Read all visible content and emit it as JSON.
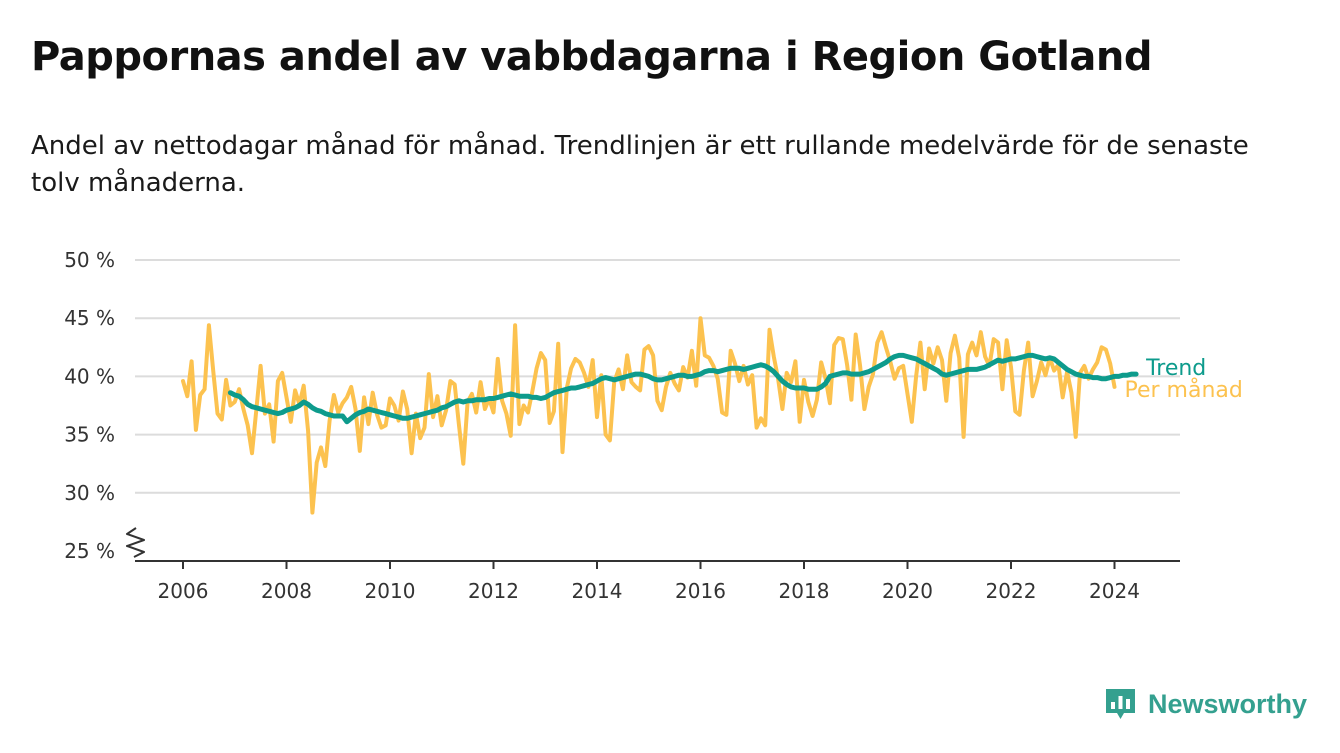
{
  "header": {
    "title": "Pappornas andel av vabbdagarna i Region Gotland",
    "subtitle": "Andel av nettodagar månad för månad. Trendlinjen är ett rullande medelvärde för de senaste tolv månaderna."
  },
  "brand": {
    "name": "Newsworthy",
    "icon": "newsworthy-logo-icon",
    "color": "#34a08f"
  },
  "colors": {
    "monthly": "#fcc24f",
    "trend": "#0d9b8c",
    "grid": "#dcdcdc",
    "axis": "#333333"
  },
  "chart_data": {
    "type": "line",
    "title": "Pappornas andel av vabbdagarna i Region Gotland",
    "xlabel": "",
    "ylabel": "",
    "ylim": [
      25,
      50
    ],
    "xlim": [
      2005.0,
      2025.2
    ],
    "y_ticks": [
      {
        "value": 50,
        "label": "50 %"
      },
      {
        "value": 45,
        "label": "45 %"
      },
      {
        "value": 40,
        "label": "40 %"
      },
      {
        "value": 35,
        "label": "35 %"
      },
      {
        "value": 30,
        "label": "30 %"
      },
      {
        "value": 25,
        "label": "25 %"
      }
    ],
    "x_ticks": [
      {
        "value": 2006,
        "label": "2006"
      },
      {
        "value": 2008,
        "label": "2008"
      },
      {
        "value": 2010,
        "label": "2010"
      },
      {
        "value": 2012,
        "label": "2012"
      },
      {
        "value": 2014,
        "label": "2014"
      },
      {
        "value": 2016,
        "label": "2016"
      },
      {
        "value": 2018,
        "label": "2018"
      },
      {
        "value": 2020,
        "label": "2020"
      },
      {
        "value": 2022,
        "label": "2022"
      },
      {
        "value": 2024,
        "label": "2024"
      }
    ],
    "axis_break": true,
    "grid": true,
    "legend": "inline-right",
    "series": [
      {
        "name": "Per månad",
        "color": "#fcc24f",
        "start": 2006.0,
        "step": 0.0833333,
        "values": [
          39.6,
          38.3,
          41.3,
          35.4,
          38.4,
          38.9,
          44.4,
          40.5,
          36.8,
          36.3,
          39.7,
          37.5,
          37.8,
          38.9,
          37.2,
          35.8,
          33.4,
          37.1,
          40.9,
          36.8,
          37.6,
          34.4,
          39.6,
          40.3,
          38.2,
          36.1,
          38.8,
          37.6,
          39.2,
          35.3,
          28.3,
          32.6,
          33.9,
          32.3,
          36.2,
          38.4,
          36.9,
          37.7,
          38.2,
          39.1,
          37.2,
          33.6,
          38.2,
          35.9,
          38.6,
          36.7,
          35.6,
          35.8,
          38.1,
          37.5,
          36.2,
          38.7,
          37.2,
          33.4,
          36.8,
          34.7,
          35.6,
          40.2,
          36.5,
          38.3,
          35.8,
          37.1,
          39.6,
          39.3,
          35.8,
          32.5,
          37.8,
          38.5,
          36.9,
          39.5,
          37.2,
          38.1,
          36.9,
          41.5,
          37.9,
          36.8,
          34.9,
          44.4,
          35.9,
          37.5,
          36.9,
          38.7,
          40.7,
          42.0,
          41.4,
          36.0,
          37.0,
          42.8,
          33.5,
          39.0,
          40.7,
          41.5,
          41.2,
          40.3,
          39.1,
          41.4,
          36.5,
          40.1,
          35.0,
          34.5,
          39.5,
          40.6,
          38.9,
          41.8,
          39.5,
          39.1,
          38.8,
          42.3,
          42.6,
          41.8,
          37.9,
          37.1,
          39.1,
          40.3,
          39.4,
          38.8,
          40.8,
          39.9,
          42.2,
          39.2,
          45.0,
          41.8,
          41.6,
          40.9,
          39.8,
          36.9,
          36.7,
          42.2,
          41.1,
          39.6,
          40.9,
          39.3,
          40.1,
          35.6,
          36.4,
          35.8,
          44.0,
          41.7,
          39.8,
          37.2,
          40.3,
          39.5,
          41.3,
          36.1,
          39.7,
          37.8,
          36.6,
          38.0,
          41.2,
          39.8,
          37.7,
          42.7,
          43.3,
          43.2,
          41.0,
          38.0,
          43.6,
          40.9,
          37.2,
          39.1,
          40.2,
          42.9,
          43.8,
          42.5,
          41.3,
          39.8,
          40.7,
          40.9,
          38.5,
          36.1,
          40.0,
          42.9,
          38.9,
          42.4,
          41.1,
          42.5,
          41.4,
          37.9,
          42.0,
          43.5,
          41.6,
          34.8,
          41.9,
          42.9,
          41.8,
          43.8,
          41.7,
          40.9,
          43.2,
          42.9,
          38.9,
          43.1,
          40.8,
          37.0,
          36.7,
          40.5,
          42.9,
          38.3,
          39.6,
          41.2,
          40.1,
          41.6,
          40.5,
          41.0,
          38.2,
          40.4,
          38.6,
          34.8,
          40.3,
          40.9,
          39.8,
          40.6,
          41.2,
          42.5,
          42.3,
          41.1,
          39.1
        ]
      },
      {
        "name": "Trend",
        "color": "#0d9b8c",
        "start": 2006.9167,
        "step": 0.0833333,
        "values": [
          38.6,
          38.4,
          38.3,
          38.0,
          37.6,
          37.4,
          37.3,
          37.2,
          37.1,
          37.0,
          36.9,
          36.8,
          36.9,
          37.1,
          37.2,
          37.3,
          37.5,
          37.8,
          37.6,
          37.3,
          37.1,
          37.0,
          36.8,
          36.7,
          36.6,
          36.6,
          36.6,
          36.1,
          36.4,
          36.7,
          36.9,
          37.0,
          37.2,
          37.1,
          37.0,
          36.9,
          36.8,
          36.7,
          36.6,
          36.5,
          36.4,
          36.4,
          36.5,
          36.6,
          36.7,
          36.8,
          36.9,
          37.0,
          37.1,
          37.3,
          37.4,
          37.6,
          37.8,
          37.9,
          37.8,
          37.9,
          37.9,
          38.0,
          38.0,
          38.0,
          38.1,
          38.1,
          38.2,
          38.3,
          38.4,
          38.5,
          38.4,
          38.3,
          38.3,
          38.3,
          38.2,
          38.2,
          38.1,
          38.2,
          38.4,
          38.6,
          38.7,
          38.8,
          38.9,
          39.0,
          39.0,
          39.1,
          39.2,
          39.3,
          39.4,
          39.6,
          39.8,
          39.9,
          39.8,
          39.7,
          39.8,
          39.9,
          40.0,
          40.1,
          40.2,
          40.2,
          40.1,
          40.0,
          39.8,
          39.7,
          39.7,
          39.8,
          39.9,
          40.0,
          40.1,
          40.1,
          40.0,
          40.0,
          40.1,
          40.2,
          40.4,
          40.5,
          40.5,
          40.4,
          40.5,
          40.6,
          40.7,
          40.7,
          40.7,
          40.6,
          40.7,
          40.8,
          40.9,
          41.0,
          40.9,
          40.7,
          40.4,
          40.0,
          39.6,
          39.3,
          39.1,
          39.0,
          39.0,
          39.0,
          38.9,
          38.9,
          38.9,
          39.1,
          39.4,
          40.0,
          40.1,
          40.2,
          40.3,
          40.3,
          40.2,
          40.2,
          40.2,
          40.3,
          40.4,
          40.6,
          40.8,
          41.0,
          41.2,
          41.5,
          41.7,
          41.8,
          41.8,
          41.7,
          41.6,
          41.5,
          41.3,
          41.1,
          40.9,
          40.7,
          40.5,
          40.2,
          40.1,
          40.2,
          40.3,
          40.4,
          40.5,
          40.6,
          40.6,
          40.6,
          40.7,
          40.8,
          41.0,
          41.2,
          41.4,
          41.3,
          41.4,
          41.5,
          41.5,
          41.6,
          41.7,
          41.8,
          41.8,
          41.7,
          41.6,
          41.5,
          41.6,
          41.5,
          41.2,
          40.9,
          40.6,
          40.4,
          40.2,
          40.1,
          40.0,
          40.0,
          39.9,
          39.9,
          39.8,
          39.8,
          39.9,
          40.0,
          40.0,
          40.1,
          40.1,
          40.2,
          40.2
        ]
      }
    ]
  }
}
